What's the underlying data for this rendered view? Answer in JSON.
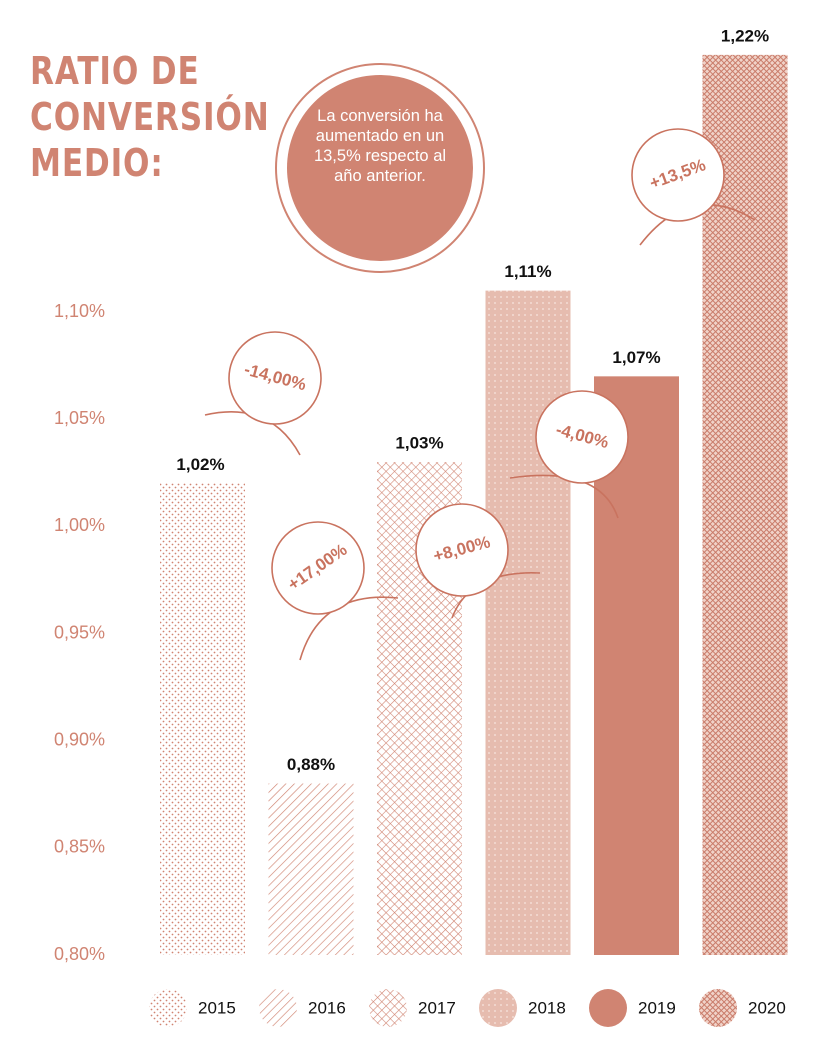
{
  "chart_data": {
    "type": "bar",
    "title": "RATIO DE CONVERSIÓN MEDIO:",
    "subtitle": "La conversión ha aumentado en un 13,5% respecto al año anterior.",
    "categories": [
      "2015",
      "2016",
      "2017",
      "2018",
      "2019",
      "2020"
    ],
    "values": [
      1.02,
      0.88,
      1.03,
      1.11,
      1.07,
      1.22
    ],
    "value_labels": [
      "1,02%",
      "0,88%",
      "1,03%",
      "1,11%",
      "1,07%",
      "1,22%"
    ],
    "colors": [
      "#d08472",
      "#d08472",
      "#d08472",
      "#e6bcaf",
      "#d08472",
      "#c97b69"
    ],
    "ylim": [
      0.8,
      1.24
    ],
    "yticks": [
      {
        "value": 0.8,
        "label": "0,80%"
      },
      {
        "value": 0.85,
        "label": "0,85%"
      },
      {
        "value": 0.9,
        "label": "0,90%"
      },
      {
        "value": 0.95,
        "label": "0,95%"
      },
      {
        "value": 1.0,
        "label": "1,00%"
      },
      {
        "value": 1.05,
        "label": "1,05%"
      },
      {
        "value": 1.1,
        "label": "1,10%"
      }
    ],
    "annotations": [
      "-14,00%",
      "+17,00%",
      "+8,00%",
      "-4,00%",
      "+13,5%"
    ],
    "legend": "bottom",
    "grid": false
  }
}
